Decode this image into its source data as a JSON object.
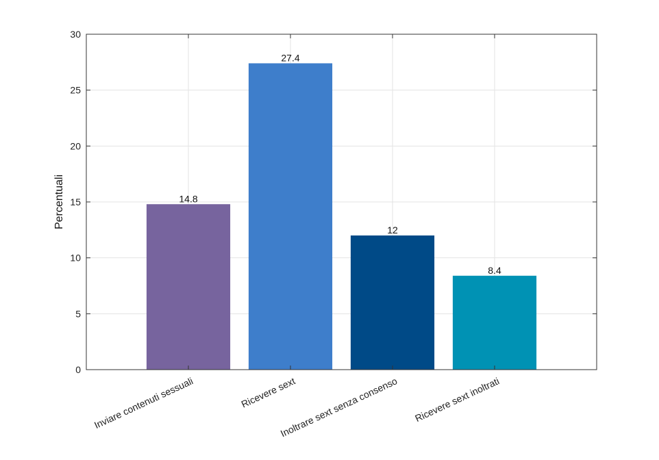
{
  "chart_data": {
    "type": "bar",
    "categories": [
      "Inviare contenuti sessuali",
      "Ricevere sext",
      "Inoltrare sext senza consenso",
      "Ricevere sext inoltrati"
    ],
    "values": [
      14.8,
      27.4,
      12,
      8.4
    ],
    "data_labels": [
      "14.8",
      "27.4",
      "12",
      "8.4"
    ],
    "colors": [
      "#77649e",
      "#3e7ecb",
      "#004a87",
      "#0092b4"
    ],
    "title": "",
    "xlabel": "",
    "ylabel": "Percentuali",
    "ylim": [
      0,
      30
    ],
    "yticks": [
      0,
      5,
      10,
      15,
      20,
      25,
      30
    ],
    "xlim": [
      0,
      5
    ],
    "grid": true,
    "legend": "none"
  }
}
